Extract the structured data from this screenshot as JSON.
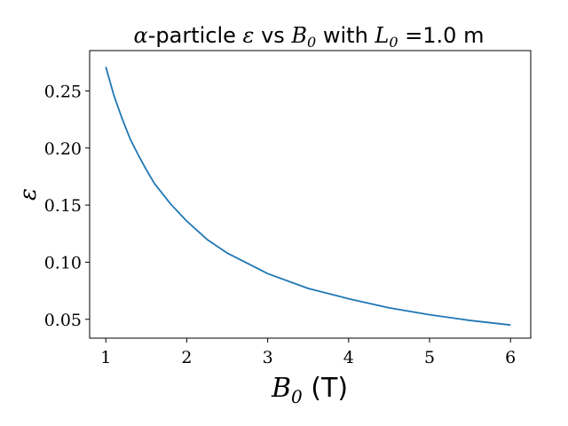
{
  "chart_data": {
    "type": "line",
    "title": {
      "prefix_symbol": "α",
      "part1": "-particle ",
      "eps_symbol": "ε",
      "part2": " vs ",
      "b_symbol": "B",
      "b_sub": "0",
      "part3": " with ",
      "l_symbol": "L",
      "l_sub": "0",
      "part4": " =1.0 m"
    },
    "xlabel": {
      "symbol": "B",
      "sub": "0",
      "unit": " (T)"
    },
    "ylabel": "ε",
    "xlim": [
      0.8,
      6.25
    ],
    "ylim": [
      0.0335,
      0.2853
    ],
    "xticks": [
      1,
      2,
      3,
      4,
      5,
      6
    ],
    "xtick_labels": [
      "1",
      "2",
      "3",
      "4",
      "5",
      "6"
    ],
    "yticks": [
      0.05,
      0.1,
      0.15,
      0.2,
      0.25
    ],
    "ytick_labels": [
      "0.05",
      "0.10",
      "0.15",
      "0.20",
      "0.25"
    ],
    "grid": false,
    "line_color": "#1f77b4",
    "series": [
      {
        "x": [
          1.0,
          1.1,
          1.2,
          1.3,
          1.4,
          1.5,
          1.6,
          1.8,
          2.0,
          2.25,
          2.5,
          2.75,
          3.0,
          3.5,
          4.0,
          4.5,
          5.0,
          5.5,
          6.0
        ],
        "y": [
          0.271,
          0.246,
          0.226,
          0.208,
          0.194,
          0.181,
          0.169,
          0.151,
          0.136,
          0.12,
          0.108,
          0.099,
          0.09,
          0.077,
          0.068,
          0.06,
          0.054,
          0.049,
          0.045
        ]
      }
    ]
  }
}
